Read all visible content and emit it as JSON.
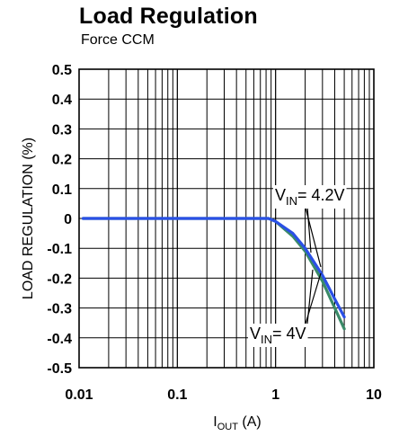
{
  "chart_data": {
    "type": "line",
    "title": "Load Regulation",
    "subtitle": "Force CCM",
    "xlabel_main": "I",
    "xlabel_sub": "OUT",
    "xlabel_unit": " (A)",
    "ylabel": "LOAD REGULATION (%)",
    "xscale": "log",
    "xlim": [
      0.01,
      10
    ],
    "ylim": [
      -0.5,
      0.5
    ],
    "grid": true,
    "x_ticks": [
      0.01,
      0.1,
      1,
      10
    ],
    "x_tick_labels": [
      "0.01",
      "0.1",
      "1",
      "10"
    ],
    "y_ticks": [
      0.5,
      0.4,
      0.3,
      0.2,
      0.1,
      0,
      -0.1,
      -0.2,
      -0.3,
      -0.4,
      -0.5
    ],
    "y_tick_labels": [
      "0.5",
      "0.4",
      "0.3",
      "0.2",
      "0.1",
      "0",
      "-0.1",
      "-0.2",
      "-0.3",
      "-0.4",
      "-0.5"
    ],
    "series": [
      {
        "color": "#3a8a68",
        "x": [
          0.011,
          0.1,
          0.85,
          1.0,
          1.5,
          2.0,
          3.0,
          4.0,
          5.0
        ],
        "y": [
          0,
          0,
          0,
          -0.01,
          -0.06,
          -0.11,
          -0.21,
          -0.3,
          -0.37
        ]
      },
      {
        "color": "#2a50e6",
        "x": [
          0.011,
          0.1,
          0.85,
          1.0,
          1.5,
          2.0,
          3.0,
          4.0,
          5.0
        ],
        "y": [
          0,
          0,
          0,
          -0.01,
          -0.05,
          -0.1,
          -0.19,
          -0.27,
          -0.33
        ]
      }
    ],
    "annotations": [
      {
        "main": "V",
        "sub": "IN",
        "rest": "= 4.2V"
      },
      {
        "main": "V",
        "sub": "IN",
        "rest": "= 4V"
      }
    ]
  }
}
